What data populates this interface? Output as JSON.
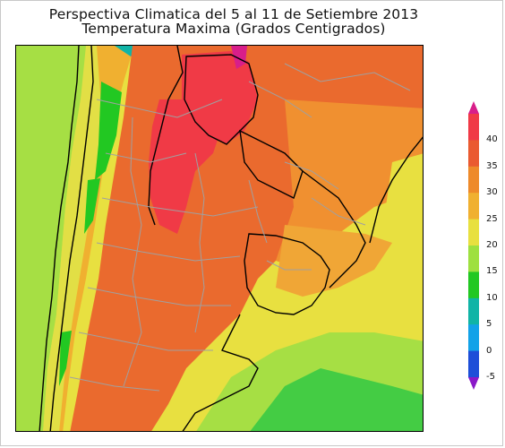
{
  "title": {
    "line1": "Perspectiva Climatica del 5 al 11 de Setiembre 2013",
    "line2": "Temperatura Maxima (Grados Centigrados)"
  },
  "legend": {
    "ticks": [
      "40",
      "35",
      "30",
      "25",
      "20",
      "15",
      "10",
      "5",
      "0",
      "-5"
    ],
    "colors": [
      "#d81e8a",
      "#f03a46",
      "#ea5a30",
      "#ee8a2a",
      "#f0b030",
      "#e8e040",
      "#9ee040",
      "#22c822",
      "#10b4a6",
      "#12a2e8",
      "#1d4ed8",
      "#8a18c8"
    ]
  }
}
